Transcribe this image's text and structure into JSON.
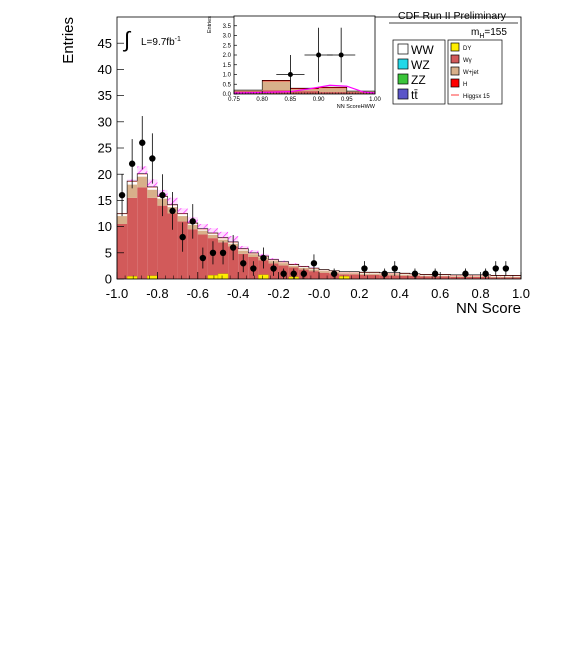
{
  "header": {
    "experiment": "CDF Run II Preliminary",
    "mass_label_main": "m",
    "mass_label_sub": "H",
    "mass_label_value": "=155",
    "lumi_prefix": "L=9.7fb",
    "lumi_sup": "-1"
  },
  "legend": {
    "items": [
      {
        "label": "WW",
        "color": "#ffffff"
      },
      {
        "label": "WZ",
        "color": "#22d8e8"
      },
      {
        "label": "ZZ",
        "color": "#3bc43b"
      },
      {
        "label": "tt̄",
        "color": "#5a55c8"
      },
      {
        "label": "DY",
        "color": "#ffee00"
      },
      {
        "label": "Wγ",
        "color": "#d25a5a"
      },
      {
        "label": "W+jet",
        "color": "#d8b08a"
      },
      {
        "label": "H",
        "color": "#ff0000"
      },
      {
        "label": "Higgsx 15",
        "color": "#ff3b3b"
      }
    ]
  },
  "chart_data": [
    {
      "type": "bar",
      "xlabel": "NN Score",
      "ylabel": "Entries",
      "xlim": [
        -1.0,
        1.0
      ],
      "ylim": [
        0,
        50
      ],
      "x_ticks": [
        "-1.0",
        "-0.8",
        "-0.6",
        "-0.4",
        "-0.2",
        "-0.0",
        "0.2",
        "0.4",
        "0.6",
        "0.8",
        "1.0"
      ],
      "y_ticks": [
        "0",
        "5",
        "10",
        "15",
        "20",
        "25",
        "30",
        "35",
        "40",
        "45"
      ],
      "bins": [
        -1.0,
        -0.95,
        -0.9,
        -0.85,
        -0.8,
        -0.75,
        -0.7,
        -0.65,
        -0.6,
        -0.55,
        -0.5,
        -0.45,
        -0.4,
        -0.35,
        -0.3,
        -0.25,
        -0.2,
        -0.15,
        -0.1,
        -0.05,
        0.0,
        0.05,
        0.1,
        0.15,
        0.2,
        0.25,
        0.3,
        0.35,
        0.4,
        0.45,
        0.5,
        0.55,
        0.6,
        0.65,
        0.7,
        0.75,
        0.8,
        0.85,
        0.9,
        0.95
      ],
      "series": [
        {
          "name": "Wγ",
          "color": "#d25a5a",
          "values": [
            10.5,
            15.5,
            17.5,
            15.5,
            14.0,
            12.5,
            11.0,
            9.5,
            8.5,
            7.8,
            7.0,
            6.2,
            4.8,
            4.2,
            3.6,
            3.0,
            2.6,
            2.2,
            1.8,
            1.5,
            1.2,
            1.1,
            0.9,
            0.9,
            0.8,
            0.8,
            0.7,
            0.7,
            0.6,
            0.6,
            0.5,
            0.5,
            0.5,
            0.4,
            0.4,
            0.4,
            0.4,
            0.3,
            0.3,
            0.3
          ]
        },
        {
          "name": "W+jet",
          "color": "#d8b08a",
          "values": [
            1.5,
            2.5,
            2.0,
            1.5,
            1.3,
            1.2,
            1.0,
            0.8,
            0.7,
            0.6,
            0.5,
            0.5,
            0.6,
            0.5,
            0.5,
            0.4,
            0.4,
            0.3,
            0.3,
            0.3,
            0.3,
            0.2,
            0.2,
            0.2,
            0.2,
            0.2,
            0.2,
            0.2,
            0.2,
            0.1,
            0.1,
            0.1,
            0.1,
            0.1,
            0.1,
            0.1,
            0.1,
            0.1,
            0.1,
            0.1
          ]
        },
        {
          "name": "WW",
          "color": "#ffffff",
          "values": [
            0.4,
            0.6,
            0.5,
            0.5,
            0.4,
            0.4,
            0.4,
            0.3,
            0.3,
            0.3,
            0.3,
            0.3,
            0.3,
            0.2,
            0.2,
            0.2,
            0.2,
            0.2,
            0.2,
            0.2,
            0.2,
            0.2,
            0.2,
            0.2,
            0.2,
            0.2,
            0.2,
            0.2,
            0.2,
            0.2,
            0.2,
            0.2,
            0.2,
            0.2,
            0.2,
            0.2,
            0.2,
            0.2,
            0.2,
            0.2
          ]
        },
        {
          "name": "H",
          "color": "#ff0000",
          "values": [
            0.1,
            0.1,
            0.1,
            0.1,
            0.1,
            0.1,
            0.1,
            0.1,
            0.1,
            0.1,
            0.1,
            0.1,
            0.1,
            0.1,
            0.1,
            0.1,
            0.1,
            0.1,
            0.1,
            0.1,
            0.1,
            0.1,
            0.1,
            0.1,
            0.1,
            0.1,
            0.1,
            0.1,
            0.1,
            0.1,
            0.1,
            0.1,
            0.1,
            0.1,
            0.1,
            0.1,
            0.1,
            0.1,
            0.1,
            0.1
          ]
        }
      ],
      "dy_values": [
        0,
        0.5,
        0,
        0.6,
        0,
        0,
        0,
        0,
        0,
        0.7,
        1.0,
        0,
        0,
        0,
        0.8,
        0,
        0,
        0.4,
        0,
        0,
        0,
        0,
        0.5,
        0,
        0,
        0,
        0,
        0,
        0,
        0,
        0,
        0,
        0,
        0,
        0,
        0,
        0,
        0,
        0,
        0
      ],
      "band_top": [
        12.5,
        19.0,
        21.5,
        19.0,
        17.0,
        15.5,
        13.5,
        11.8,
        10.5,
        9.7,
        9.0,
        8.2,
        6.3,
        5.5,
        4.8,
        4.0,
        3.5,
        3.0,
        2.5,
        2.2,
        1.8,
        1.6,
        1.4,
        1.3,
        1.2,
        1.2,
        1.1,
        1.0,
        0.9,
        0.9,
        0.8,
        0.8,
        0.7,
        0.7,
        0.6,
        0.6,
        0.6,
        0.5,
        0.5,
        0.5
      ],
      "data_points": {
        "x": [
          -0.975,
          -0.925,
          -0.875,
          -0.825,
          -0.775,
          -0.725,
          -0.675,
          -0.625,
          -0.575,
          -0.525,
          -0.475,
          -0.425,
          -0.375,
          -0.325,
          -0.275,
          -0.225,
          -0.175,
          -0.125,
          -0.075,
          -0.025,
          0.075,
          0.225,
          0.325,
          0.375,
          0.475,
          0.575,
          0.725,
          0.825,
          0.875,
          0.925
        ],
        "y": [
          16,
          22,
          26,
          23,
          16,
          13,
          8,
          11,
          4,
          5,
          5,
          6,
          3,
          2,
          4,
          2,
          1,
          1,
          1,
          3,
          1,
          2,
          1,
          2,
          1,
          1,
          1,
          1,
          2,
          2
        ],
        "err": [
          4,
          4.7,
          5.1,
          4.8,
          4,
          3.6,
          2.8,
          3.3,
          2,
          2.2,
          2.2,
          2.4,
          1.7,
          1.4,
          2,
          1.4,
          1,
          1,
          1,
          1.7,
          1,
          1.4,
          1,
          1.4,
          1,
          1,
          1,
          1,
          1.4,
          1.4
        ]
      }
    },
    {
      "type": "bar",
      "xlabel": "NN ScoreHWW",
      "ylabel": "Entries",
      "xlim": [
        0.75,
        1.0
      ],
      "ylim": [
        0,
        4
      ],
      "x_ticks": [
        "0.75",
        "0.80",
        "0.85",
        "0.90",
        "0.95",
        "1.00"
      ],
      "y_ticks": [
        "0.0",
        "0.5",
        "1.0",
        "1.5",
        "2.0",
        "2.5",
        "3.0",
        "3.5"
      ],
      "bins": [
        0.75,
        0.8,
        0.85,
        0.9,
        0.95
      ],
      "series": [
        {
          "name": "Wγ",
          "color": "#d25a5a",
          "values": [
            0.15,
            0.2,
            0.15,
            0.1,
            0.1
          ]
        },
        {
          "name": "W+jet",
          "color": "#d8b08a",
          "values": [
            0.05,
            0.45,
            0.1,
            0.2,
            0.05
          ]
        },
        {
          "name": "H",
          "color": "#ff0000",
          "values": [
            0.0,
            0.05,
            0.05,
            0.05,
            0.0
          ]
        }
      ],
      "higgs_x": [
        0.75,
        0.8,
        0.85,
        0.88,
        0.9,
        0.92,
        0.95,
        0.98,
        1.0
      ],
      "higgs_y": [
        0.05,
        0.08,
        0.12,
        0.25,
        0.35,
        0.45,
        0.4,
        0.1,
        0.05
      ],
      "data_points": {
        "x": [
          0.85,
          0.9,
          0.94
        ],
        "y": [
          1,
          2,
          2
        ],
        "err": [
          1,
          1.4,
          1.4
        ]
      }
    }
  ]
}
